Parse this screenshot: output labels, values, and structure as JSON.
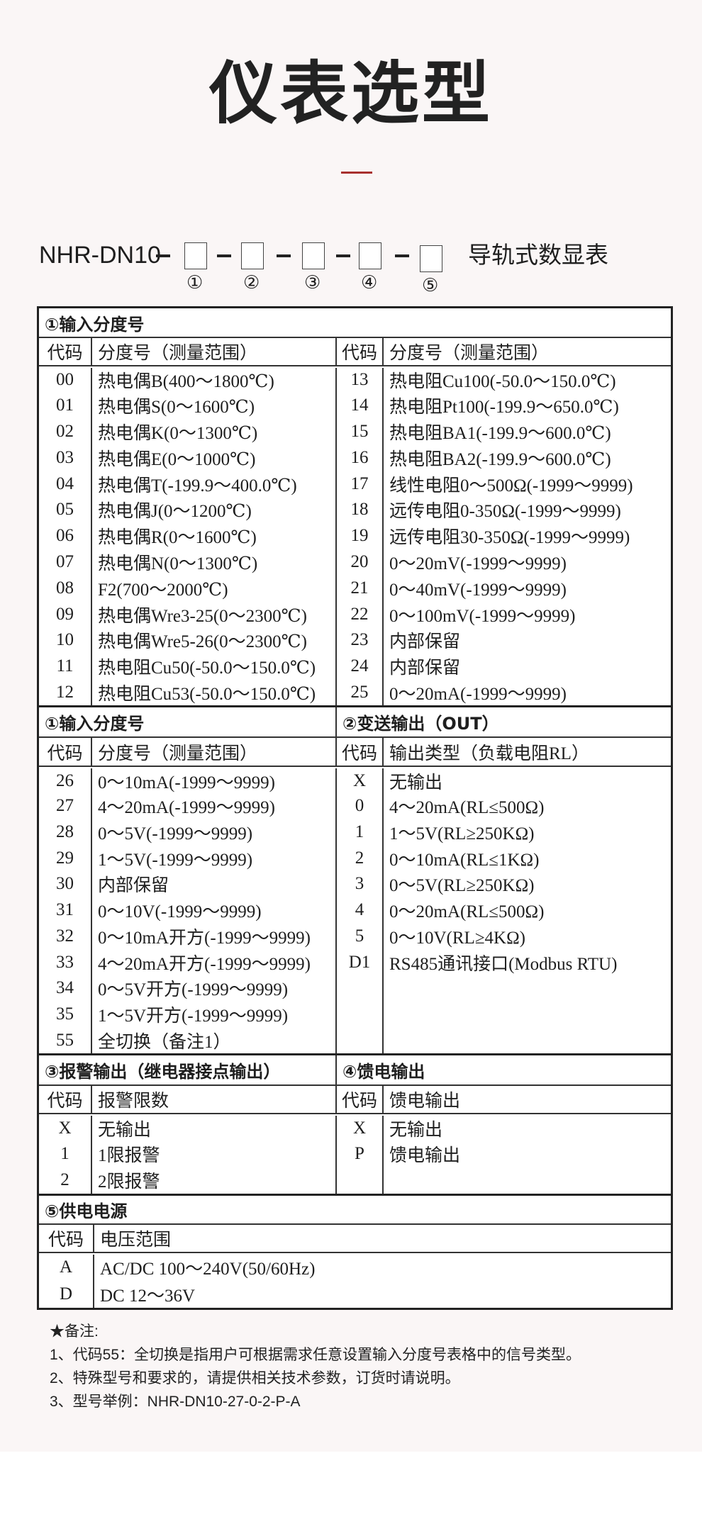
{
  "title": "仪表选型",
  "accent_color": "#a8302e",
  "model": {
    "prefix": "NHR-DN10",
    "suffix": "导轨式数显表",
    "slots": [
      "①",
      "②",
      "③",
      "④",
      "⑤"
    ]
  },
  "sections": {
    "s1": {
      "title": "①输入分度号",
      "headers": [
        "代码",
        "分度号（测量范围）",
        "代码",
        "分度号（测量范围）"
      ],
      "rows": [
        [
          "00",
          "热电偶B(400～1800℃)",
          "13",
          "热电阻Cu100(-50.0～150.0℃)"
        ],
        [
          "01",
          "热电偶S(0～1600℃)",
          "14",
          "热电阻Pt100(-199.9～650.0℃)"
        ],
        [
          "02",
          "热电偶K(0～1300℃)",
          "15",
          "热电阻BA1(-199.9～600.0℃)"
        ],
        [
          "03",
          "热电偶E(0～1000℃)",
          "16",
          "热电阻BA2(-199.9～600.0℃)"
        ],
        [
          "04",
          "热电偶T(-199.9～400.0℃)",
          "17",
          "线性电阻0～500Ω(-1999～9999)"
        ],
        [
          "05",
          "热电偶J(0～1200℃)",
          "18",
          "远传电阻0-350Ω(-1999～9999)"
        ],
        [
          "06",
          "热电偶R(0～1600℃)",
          "19",
          "远传电阻30-350Ω(-1999～9999)"
        ],
        [
          "07",
          "热电偶N(0～1300℃)",
          "20",
          "0～20mV(-1999～9999)"
        ],
        [
          "08",
          "F2(700～2000℃)",
          "21",
          "0～40mV(-1999～9999)"
        ],
        [
          "09",
          "热电偶Wre3-25(0～2300℃)",
          "22",
          "0～100mV(-1999～9999)"
        ],
        [
          "10",
          "热电偶Wre5-26(0～2300℃)",
          "23",
          "内部保留"
        ],
        [
          "11",
          "热电阻Cu50(-50.0～150.0℃)",
          "24",
          "内部保留"
        ],
        [
          "12",
          "热电阻Cu53(-50.0～150.0℃)",
          "25",
          "0～20mA(-1999～9999)"
        ]
      ]
    },
    "s2": {
      "title": "①输入分度号",
      "title2": "②变送输出（OUT）",
      "headers": [
        "代码",
        "分度号（测量范围）",
        "代码",
        "输出类型（负载电阻RL）"
      ],
      "rows": [
        [
          "26",
          "0～10mA(-1999～9999)",
          "X",
          "无输出"
        ],
        [
          "27",
          "4～20mA(-1999～9999)",
          "0",
          "4～20mA(RL≤500Ω)"
        ],
        [
          "28",
          "0～5V(-1999～9999)",
          "1",
          "1～5V(RL≥250KΩ)"
        ],
        [
          "29",
          "1～5V(-1999～9999)",
          "2",
          "0～10mA(RL≤1KΩ)"
        ],
        [
          "30",
          "内部保留",
          "3",
          "0～5V(RL≥250KΩ)"
        ],
        [
          "31",
          "0～10V(-1999～9999)",
          "4",
          "0～20mA(RL≤500Ω)"
        ],
        [
          "32",
          "0～10mA开方(-1999～9999)",
          "5",
          "0～10V(RL≥4KΩ)"
        ],
        [
          "33",
          "4～20mA开方(-1999～9999)",
          "D1",
          "RS485通讯接口(Modbus RTU)"
        ],
        [
          "34",
          "0～5V开方(-1999～9999)",
          "",
          ""
        ],
        [
          "35",
          "1～5V开方(-1999～9999)",
          "",
          ""
        ],
        [
          "55",
          "全切换（备注1）",
          "",
          ""
        ]
      ]
    },
    "s3": {
      "title": "③报警输出（继电器接点输出）",
      "title2": "④馈电输出",
      "headers": [
        "代码",
        "报警限数",
        "代码",
        "馈电输出"
      ],
      "rows": [
        [
          "X",
          "无输出",
          "X",
          "无输出"
        ],
        [
          "1",
          "1限报警",
          "P",
          "馈电输出"
        ],
        [
          "2",
          "2限报警",
          "",
          ""
        ]
      ]
    },
    "s5": {
      "title": "⑤供电电源",
      "headers": [
        "代码",
        "电压范围"
      ],
      "rows": [
        [
          "A",
          "AC/DC 100～240V(50/60Hz)"
        ],
        [
          "D",
          "DC 12～36V"
        ]
      ]
    }
  },
  "notes": [
    "★备注:",
    "1、代码55：全切换是指用户可根据需求任意设置输入分度号表格中的信号类型。",
    "2、特殊型号和要求的，请提供相关技术参数，订货时请说明。",
    "3、型号举例：NHR-DN10-27-0-2-P-A"
  ]
}
